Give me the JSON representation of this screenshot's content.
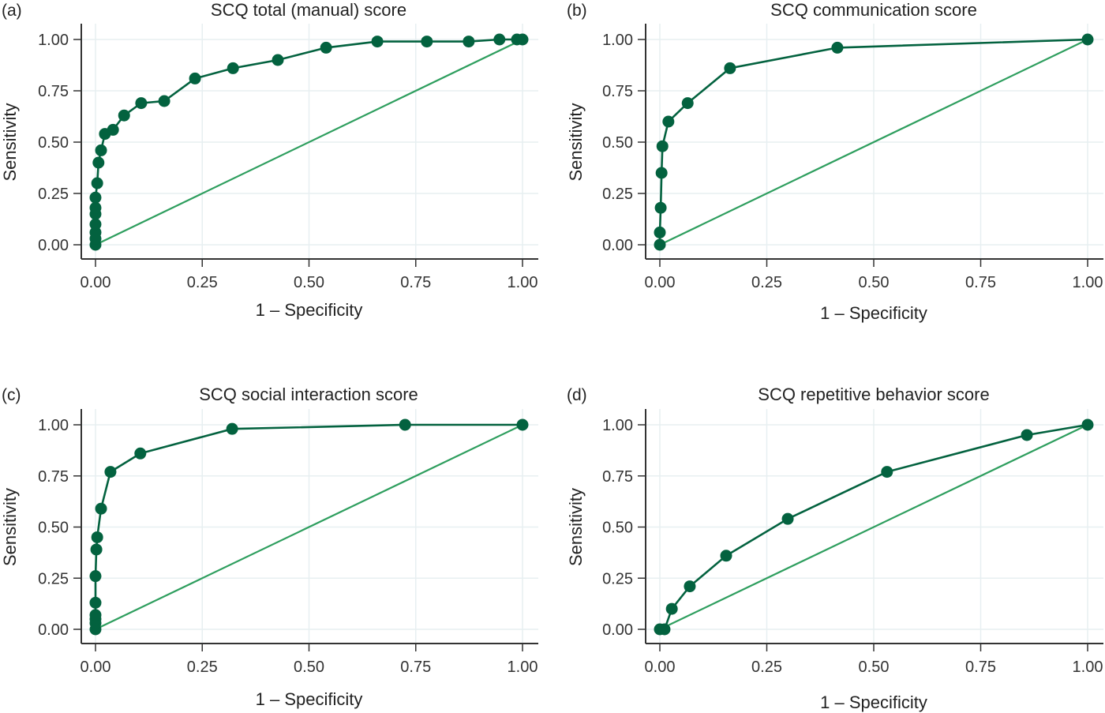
{
  "colors": {
    "roc": "#03623f",
    "reference": "#2e9e5e",
    "grid": "#e7eff1"
  },
  "chart_data": [
    {
      "type": "line",
      "panel": "(a)",
      "title": "SCQ total (manual) score",
      "xlabel": "1 – Specificity",
      "ylabel": "Sensitivity",
      "xlim": [
        0,
        1
      ],
      "ylim": [
        0,
        1
      ],
      "xticks": [
        "0.00",
        "0.25",
        "0.50",
        "0.75",
        "1.00"
      ],
      "yticks": [
        "0.00",
        "0.25",
        "0.50",
        "0.75",
        "1.00"
      ],
      "grid": true,
      "series": [
        {
          "name": "ROC curve",
          "markers": true,
          "x": [
            0,
            0,
            0,
            0,
            0,
            0,
            0,
            0.004,
            0.007,
            0.013,
            0.022,
            0.041,
            0.067,
            0.107,
            0.161,
            0.233,
            0.322,
            0.427,
            0.54,
            0.66,
            0.776,
            0.874,
            0.946,
            0.987,
            1.0
          ],
          "y": [
            0,
            0.03,
            0.06,
            0.1,
            0.15,
            0.18,
            0.23,
            0.3,
            0.4,
            0.46,
            0.54,
            0.56,
            0.63,
            0.69,
            0.7,
            0.81,
            0.86,
            0.9,
            0.96,
            0.99,
            0.99,
            0.99,
            1.0,
            1.0,
            1.0
          ]
        },
        {
          "name": "Reference line",
          "markers": false,
          "x": [
            0,
            1
          ],
          "y": [
            0,
            1
          ]
        }
      ]
    },
    {
      "type": "line",
      "panel": "(b)",
      "title": "SCQ communication score",
      "xlabel": "1 – Specificity",
      "ylabel": "Sensitivity",
      "xlim": [
        0,
        1
      ],
      "ylim": [
        0,
        1
      ],
      "xticks": [
        "0.00",
        "0.25",
        "0.50",
        "0.75",
        "1.00"
      ],
      "yticks": [
        "0.00",
        "0.25",
        "0.50",
        "0.75",
        "1.00"
      ],
      "grid": true,
      "series": [
        {
          "name": "ROC curve",
          "markers": true,
          "x": [
            0,
            0,
            0.002,
            0.004,
            0.006,
            0.02,
            0.065,
            0.164,
            0.415,
            1.0
          ],
          "y": [
            0,
            0.06,
            0.18,
            0.35,
            0.48,
            0.6,
            0.69,
            0.86,
            0.96,
            1.0
          ]
        },
        {
          "name": "Reference line",
          "markers": false,
          "x": [
            0,
            1
          ],
          "y": [
            0,
            1
          ]
        }
      ]
    },
    {
      "type": "line",
      "panel": "(c)",
      "title": "SCQ social interaction score",
      "xlabel": "1 – Specificity",
      "ylabel": "Sensitivity",
      "xlim": [
        0,
        1
      ],
      "ylim": [
        0,
        1
      ],
      "xticks": [
        "0.00",
        "0.25",
        "0.50",
        "0.75",
        "1.00"
      ],
      "yticks": [
        "0.00",
        "0.25",
        "0.50",
        "0.75",
        "1.00"
      ],
      "grid": true,
      "series": [
        {
          "name": "ROC curve",
          "markers": true,
          "x": [
            0,
            0,
            0,
            0,
            0,
            0,
            0.002,
            0.004,
            0.013,
            0.035,
            0.105,
            0.32,
            0.725,
            1.0
          ],
          "y": [
            0,
            0.03,
            0.05,
            0.07,
            0.13,
            0.26,
            0.39,
            0.45,
            0.59,
            0.77,
            0.86,
            0.98,
            1.0,
            1.0
          ]
        },
        {
          "name": "Reference line",
          "markers": false,
          "x": [
            0,
            1
          ],
          "y": [
            0,
            1
          ]
        }
      ]
    },
    {
      "type": "line",
      "panel": "(d)",
      "title": "SCQ repetitive behavior score",
      "xlabel": "1 – Specificity",
      "ylabel": "Sensitivity",
      "xlim": [
        0,
        1
      ],
      "ylim": [
        0,
        1
      ],
      "xticks": [
        "0.00",
        "0.25",
        "0.50",
        "0.75",
        "1.00"
      ],
      "yticks": [
        "0.00",
        "0.25",
        "0.50",
        "0.75",
        "1.00"
      ],
      "grid": true,
      "series": [
        {
          "name": "ROC curve",
          "markers": true,
          "x": [
            0,
            0.011,
            0.028,
            0.07,
            0.155,
            0.299,
            0.531,
            0.858,
            1.0
          ],
          "y": [
            0,
            0,
            0.1,
            0.21,
            0.36,
            0.54,
            0.77,
            0.95,
            1.0
          ]
        },
        {
          "name": "Reference line",
          "markers": false,
          "x": [
            0,
            1
          ],
          "y": [
            0,
            1
          ]
        }
      ]
    }
  ]
}
